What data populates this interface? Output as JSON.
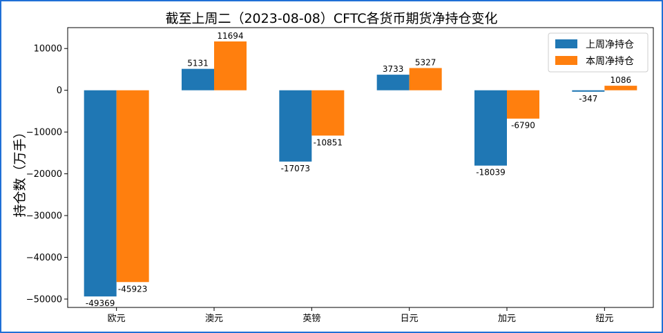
{
  "chart_data": {
    "type": "bar",
    "title": "截至上周二（2023-08-08）CFTC各货币期货净持仓变化",
    "xlabel": "",
    "ylabel": "持仓数（万手）",
    "categories": [
      "欧元",
      "澳元",
      "英镑",
      "日元",
      "加元",
      "纽元"
    ],
    "series": [
      {
        "name": "上周净持仓",
        "color": "#1f77b4",
        "values": [
          -49369,
          5131,
          -17073,
          3733,
          -18039,
          -347
        ]
      },
      {
        "name": "本周净持仓",
        "color": "#ff7f0e",
        "values": [
          -45923,
          11694,
          -10851,
          5327,
          -6790,
          1086
        ]
      }
    ],
    "ylim": [
      -52000,
      15000
    ],
    "yticks": [
      10000,
      0,
      -10000,
      -20000,
      -30000,
      -40000,
      -50000
    ],
    "ytick_labels": [
      "10000",
      "0",
      "−10000",
      "−20000",
      "−30000",
      "−40000",
      "−50000"
    ],
    "data_labels": [
      [
        "-49369",
        "5131",
        "-17073",
        "3733",
        "-18039",
        "-347"
      ],
      [
        "-45923",
        "11694",
        "-10851",
        "5327",
        "-6790",
        "1086"
      ]
    ],
    "legend_position": "top-right",
    "grid": false
  }
}
